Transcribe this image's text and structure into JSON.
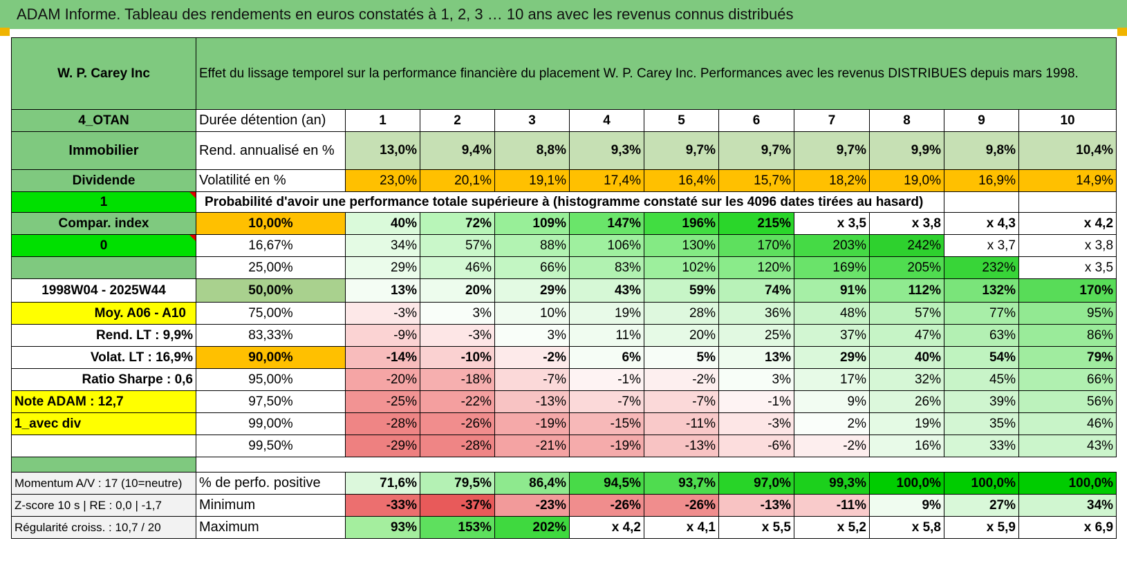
{
  "title": "ADAM Informe. Tableau des rendements en euros constatés à 1, 2, 3 … 10 ans avec les revenus connus distribués",
  "header": {
    "company": "W. P. Carey Inc",
    "description": "Effet du lissage temporel sur la performance financière du placement W. P. Carey Inc. Performances avec les revenus DISTRIBUES depuis mars 1998."
  },
  "left": {
    "code": "4_OTAN",
    "sector": "Immobilier",
    "type": "Dividende",
    "index_value": "1",
    "compar_label": "Compar. index",
    "zero_value": "0",
    "period": "1998W04 - 2025W44",
    "moy_label": "Moy. A06 - A10",
    "rend_lt": "Rend. LT :   9,9%",
    "volat_lt": "Volat. LT :   16,9%",
    "sharpe": "Ratio Sharpe :   0,6",
    "note": "Note ADAM : 12,7",
    "avec_div": "1_avec div"
  },
  "labels": {
    "duree": "Durée détention (an)",
    "rend": "Rend. annualisé en %",
    "vol": "Volatilité en %",
    "proba": "Probabilité d'avoir une performance totale supérieure à (histogramme constaté sur les 4096 dates tirées au hasard)"
  },
  "years": [
    "1",
    "2",
    "3",
    "4",
    "5",
    "6",
    "7",
    "8",
    "9",
    "10"
  ],
  "rend": [
    "13,0%",
    "9,4%",
    "8,8%",
    "9,3%",
    "9,7%",
    "9,7%",
    "9,7%",
    "9,9%",
    "9,8%",
    "10,4%"
  ],
  "vol": [
    "23,0%",
    "20,1%",
    "19,1%",
    "17,4%",
    "16,4%",
    "15,7%",
    "18,2%",
    "19,0%",
    "16,9%",
    "14,9%"
  ],
  "prob_rows": [
    {
      "p": "10,00%",
      "v": [
        "40%",
        "72%",
        "109%",
        "147%",
        "196%",
        "215%",
        "x 3,5",
        "x 3,8",
        "x 4,3",
        "x 4,2"
      ],
      "c": [
        "#dafada",
        "#b8f5b8",
        "#98ef98",
        "#6ae56a",
        "#41dd41",
        "#2ad62a",
        "#ffffff",
        "#ffffff",
        "#ffffff",
        "#ffffff"
      ]
    },
    {
      "p": "16,67%",
      "v": [
        "34%",
        "57%",
        "88%",
        "106%",
        "130%",
        "170%",
        "203%",
        "242%",
        "x 3,7",
        "x 3,8"
      ],
      "c": [
        "#e4fbe4",
        "#c9f7c9",
        "#b2f3b2",
        "#9ff09f",
        "#84ea84",
        "#5ee05e",
        "#45da45",
        "#2ed12e",
        "#ffffff",
        "#ffffff"
      ]
    },
    {
      "p": "25,00%",
      "v": [
        "29%",
        "46%",
        "66%",
        "83%",
        "102%",
        "120%",
        "169%",
        "205%",
        "232%",
        "x 3,5"
      ],
      "c": [
        "#ebfceb",
        "#d4f9d4",
        "#c3f6c3",
        "#b1f2b1",
        "#9def9d",
        "#8aeb8a",
        "#6ae36a",
        "#50dd50",
        "#38d538",
        "#ffffff"
      ]
    },
    {
      "p": "50,00%",
      "v": [
        "13%",
        "20%",
        "29%",
        "43%",
        "59%",
        "74%",
        "91%",
        "112%",
        "132%",
        "170%"
      ],
      "c": [
        "#f4fdf4",
        "#edfced",
        "#e3fae3",
        "#d6f8d6",
        "#c7f5c7",
        "#b8f2b8",
        "#a6efa6",
        "#90ea90",
        "#7ae47a",
        "#58dc58"
      ]
    },
    {
      "p": "75,00%",
      "v": [
        "-3%",
        "3%",
        "10%",
        "19%",
        "28%",
        "36%",
        "48%",
        "57%",
        "77%",
        "95%"
      ],
      "c": [
        "#fde8e8",
        "#f9fef9",
        "#f1fcf1",
        "#e8fae8",
        "#def8de",
        "#d5f7d5",
        "#c8f4c8",
        "#bcf2bc",
        "#a8eea8",
        "#92e992"
      ]
    },
    {
      "p": "83,33%",
      "v": [
        "-9%",
        "-3%",
        "3%",
        "11%",
        "20%",
        "25%",
        "37%",
        "47%",
        "63%",
        "86%"
      ],
      "c": [
        "#fbd3d3",
        "#fde6e6",
        "#f9fef9",
        "#f0fcf0",
        "#e6fae6",
        "#e1f9e1",
        "#d2f6d2",
        "#c6f4c6",
        "#b3f0b3",
        "#9aeb9a"
      ]
    },
    {
      "p": "90,00%",
      "v": [
        "-14%",
        "-10%",
        "-2%",
        "6%",
        "5%",
        "13%",
        "29%",
        "40%",
        "54%",
        "79%"
      ],
      "c": [
        "#f8bcbc",
        "#fad1d1",
        "#fdeaea",
        "#f6fdf6",
        "#f7fdf7",
        "#effcef",
        "#daf8da",
        "#cff5cf",
        "#bff3bf",
        "#a0ec9f"
      ]
    },
    {
      "p": "95,00%",
      "v": [
        "-20%",
        "-18%",
        "-7%",
        "-1%",
        "-2%",
        "3%",
        "17%",
        "32%",
        "45%",
        "66%"
      ],
      "c": [
        "#f5a5a5",
        "#f6afaf",
        "#fbd9d9",
        "#fef3f3",
        "#fdefef",
        "#f8fef8",
        "#e7fae7",
        "#d6f7d6",
        "#c8f4c8",
        "#b0f0b0"
      ]
    },
    {
      "p": "97,50%",
      "v": [
        "-25%",
        "-22%",
        "-13%",
        "-7%",
        "-7%",
        "-1%",
        "9%",
        "26%",
        "39%",
        "56%"
      ],
      "c": [
        "#f29393",
        "#f49f9f",
        "#f8c3c3",
        "#fbd9d9",
        "#fbd9d9",
        "#fef3f3",
        "#f2fcf2",
        "#dcf8dc",
        "#cff5cf",
        "#bcf2bc"
      ]
    },
    {
      "p": "99,00%",
      "v": [
        "-28%",
        "-26%",
        "-19%",
        "-15%",
        "-11%",
        "-3%",
        "2%",
        "19%",
        "35%",
        "46%"
      ],
      "c": [
        "#ef8585",
        "#f18d8d",
        "#f5a9a9",
        "#f7b8b8",
        "#f9c9c9",
        "#fde6e6",
        "#fafefa",
        "#e4fae4",
        "#d3f6d3",
        "#c8f4c8"
      ]
    },
    {
      "p": "99,50%",
      "v": [
        "-29%",
        "-28%",
        "-21%",
        "-19%",
        "-13%",
        "-6%",
        "-2%",
        "16%",
        "33%",
        "43%"
      ],
      "c": [
        "#ee8080",
        "#ef8585",
        "#f4a3a3",
        "#f5abab",
        "#f8c3c3",
        "#fcdddd",
        "#fdeeee",
        "#e8fae8",
        "#d5f7d5",
        "#cbf5cb"
      ]
    }
  ],
  "bottom": {
    "momentum": "Momentum A/V : 17 (10=neutre)",
    "zscore": "Z-score 10 s | RE : 0,0 | -1,7",
    "regul": "Régularité croiss. : 10,7 / 20",
    "pct_label": "% de perfo. positive",
    "min_label": "Minimum",
    "max_label": "Maximum",
    "pct": [
      "71,6%",
      "79,5%",
      "86,4%",
      "94,5%",
      "93,7%",
      "97,0%",
      "99,3%",
      "100,0%",
      "100,0%",
      "100,0%"
    ],
    "pct_c": [
      "#dcf8dc",
      "#b4f1b4",
      "#8ee98e",
      "#48da48",
      "#4fdc4f",
      "#28d428",
      "#1cd01c",
      "#00cc00",
      "#00cc00",
      "#00cc00"
    ],
    "min": [
      "-33%",
      "-37%",
      "-23%",
      "-26%",
      "-26%",
      "-13%",
      "-11%",
      "9%",
      "27%",
      "34%"
    ],
    "min_c": [
      "#ec6f6f",
      "#e85a5a",
      "#f29a9a",
      "#f08d8d",
      "#f08d8d",
      "#f8c3c3",
      "#f9cbcb",
      "#f0fcf0",
      "#d9f8d9",
      "#d0f6d0"
    ],
    "max": [
      "93%",
      "153%",
      "202%",
      "x 4,2",
      "x 4,1",
      "x 5,5",
      "x 5,2",
      "x 5,8",
      "x 5,9",
      "x 6,9"
    ],
    "max_c": [
      "#a4ee9e",
      "#5ee05e",
      "#3fd93f",
      "#ffffff",
      "#ffffff",
      "#ffffff",
      "#ffffff",
      "#ffffff",
      "#ffffff",
      "#ffffff"
    ]
  }
}
